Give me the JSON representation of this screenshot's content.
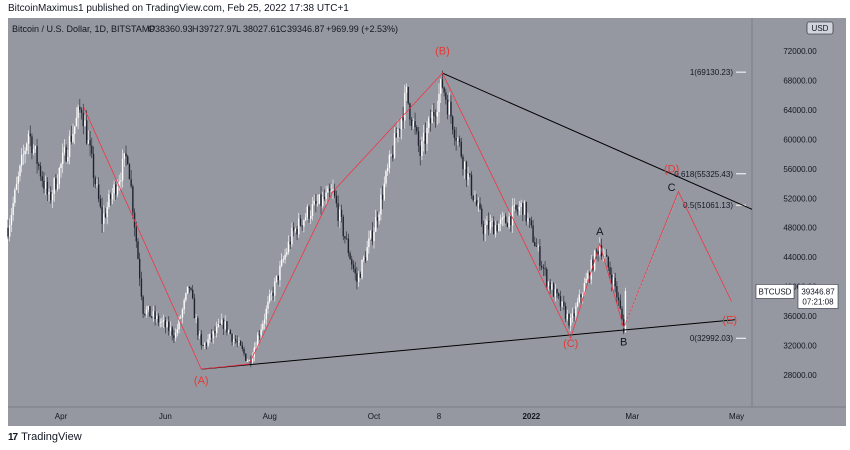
{
  "publisher": "BitcoinMaximus1 published on TradingView.com, Feb 25, 2022 17:38 UTC+1",
  "footer": {
    "brand": "TradingView",
    "logo_icon": "tradingview-logo-icon"
  },
  "chart_data": {
    "type": "candlestick",
    "title": "Bitcoin / U.S. Dollar, 1D, BITSTAMP",
    "ohlc": {
      "O": "38360.93",
      "H": "39727.97",
      "L": "38027.61",
      "C": "39346.87",
      "change": "+969.99 (+2.53%)"
    },
    "currency": "USD",
    "symbol": "BTCUSD",
    "last_price": "39346.87",
    "countdown": "07:21:08",
    "colors": {
      "background": "#9598a1",
      "up": "#ffffff",
      "down": "#1e222d",
      "wave": "#f23645",
      "trendline": "#000000"
    },
    "y_ticks": [
      "72000.00",
      "68000.00",
      "64000.00",
      "60000.00",
      "56000.00",
      "52000.00",
      "48000.00",
      "44000.00",
      "40000.00",
      "36000.00",
      "32000.00",
      "28000.00"
    ],
    "x_ticks": [
      "Apr",
      "Jun",
      "Aug",
      "Oct",
      "8",
      "2022",
      "Mar",
      "May"
    ],
    "fib_levels": [
      {
        "label": "1(69130.23)",
        "price": 69130.23
      },
      {
        "label": "0.618(55325.43)",
        "price": 55325.43
      },
      {
        "label": "0.5(51061.13)",
        "price": 51061.13
      },
      {
        "label": "0(32992.03)",
        "price": 32992.03
      }
    ],
    "wave_labels": [
      {
        "text": "(A)",
        "date": "2021-06-22",
        "price": 26800,
        "color": "red"
      },
      {
        "text": "(B)",
        "date": "2021-11-10",
        "price": 71500,
        "color": "red"
      },
      {
        "text": "(C)",
        "date": "2022-01-24",
        "price": 31800,
        "color": "red"
      },
      {
        "text": "(D)",
        "date": "2022-03-24",
        "price": 55500,
        "color": "red"
      },
      {
        "text": "(E)",
        "date": "2022-04-27",
        "price": 35000,
        "color": "red"
      },
      {
        "text": "A",
        "date": "2022-02-10",
        "price": 47000,
        "color": "black"
      },
      {
        "text": "B",
        "date": "2022-02-24",
        "price": 32000,
        "color": "black"
      },
      {
        "text": "C",
        "date": "2022-03-24",
        "price": 53000,
        "color": "black"
      }
    ],
    "wave_path": [
      [
        "2021-04-14",
        64500
      ],
      [
        "2021-06-22",
        28800
      ],
      [
        "2021-07-20",
        29500
      ],
      [
        "2021-09-07",
        52900
      ],
      [
        "2021-11-10",
        69000
      ],
      [
        "2022-01-24",
        33000
      ],
      [
        "2022-02-10",
        45800
      ],
      [
        "2022-02-24",
        34400
      ],
      [
        "2022-03-28",
        52900
      ],
      [
        "2022-04-28",
        38000
      ]
    ],
    "projection_path": [
      [
        "2022-02-24",
        34400
      ],
      [
        "2022-03-28",
        52500
      ]
    ],
    "trendlines": [
      {
        "from": [
          "2021-06-22",
          28800
        ],
        "to": [
          "2022-04-30",
          35500
        ]
      },
      {
        "from": [
          "2021-11-10",
          69000
        ],
        "to": [
          "2022-05-10",
          50500
        ]
      }
    ],
    "price_path": [
      [
        "2021-03-01",
        48000
      ],
      [
        "2021-03-13",
        61000
      ],
      [
        "2021-03-25",
        51700
      ],
      [
        "2021-04-13",
        64500
      ],
      [
        "2021-04-25",
        49000
      ],
      [
        "2021-05-10",
        58000
      ],
      [
        "2021-05-19",
        37000
      ],
      [
        "2021-06-07",
        33500
      ],
      [
        "2021-06-15",
        40000
      ],
      [
        "2021-06-22",
        31600
      ],
      [
        "2021-07-05",
        35000
      ],
      [
        "2021-07-20",
        29800
      ],
      [
        "2021-08-14",
        47000
      ],
      [
        "2021-08-23",
        50000
      ],
      [
        "2021-09-07",
        52700
      ],
      [
        "2021-09-21",
        40700
      ],
      [
        "2021-10-01",
        48000
      ],
      [
        "2021-10-20",
        66000
      ],
      [
        "2021-10-28",
        58000
      ],
      [
        "2021-11-10",
        67500
      ],
      [
        "2021-11-26",
        54000
      ],
      [
        "2021-12-04",
        48000
      ],
      [
        "2021-12-15",
        48500
      ],
      [
        "2021-12-27",
        51000
      ],
      [
        "2022-01-10",
        41000
      ],
      [
        "2022-01-24",
        35000
      ],
      [
        "2022-02-10",
        45800
      ],
      [
        "2022-02-19",
        40000
      ],
      [
        "2022-02-24",
        34400
      ],
      [
        "2022-02-25",
        39346.87
      ]
    ]
  }
}
